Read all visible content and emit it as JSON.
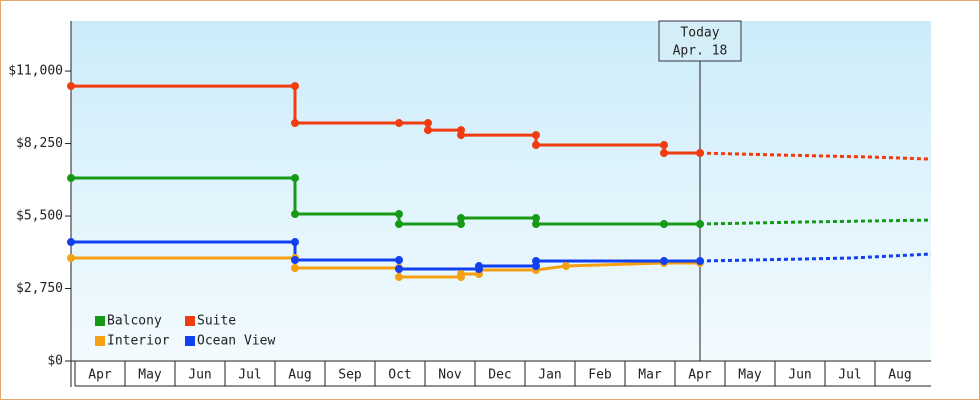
{
  "chart_data": {
    "type": "step-line",
    "categories": [
      "Apr",
      "May",
      "Jun",
      "Jul",
      "Aug",
      "Sep",
      "Oct",
      "Nov",
      "Dec",
      "Jan",
      "Feb",
      "Mar",
      "Apr",
      "May",
      "Jun",
      "Jul",
      "Aug"
    ],
    "xlim": [
      0,
      17.2
    ],
    "ylim": [
      0,
      12900
    ],
    "yticks": [
      {
        "value": 0,
        "label": "$0"
      },
      {
        "value": 2750,
        "label": "$2,750"
      },
      {
        "value": 5500,
        "label": "$5,500"
      },
      {
        "value": 8250,
        "label": "$8,250"
      },
      {
        "value": 11000,
        "label": "$11,000"
      }
    ],
    "annotation": {
      "lines": [
        "Today",
        "Apr. 18"
      ],
      "x": 12.58
    },
    "series": [
      {
        "name": "Balcony",
        "color": "#169a16",
        "x": [
          0,
          4.48,
          4.48,
          6.56,
          6.56,
          7.8,
          7.8,
          9.3,
          9.3,
          11.86,
          12.58
        ],
        "values": [
          6941,
          6941,
          5576,
          5576,
          5197,
          5197,
          5424,
          5424,
          5197,
          5197,
          5197
        ],
        "forecast_x": [
          12.58,
          14.6,
          17.2
        ],
        "forecast_values": [
          5197,
          5272,
          5348
        ]
      },
      {
        "name": "Suite",
        "color": "#f03c10",
        "x": [
          0,
          4.48,
          4.48,
          6.56,
          7.14,
          7.14,
          7.8,
          7.8,
          9.3,
          9.3,
          11.86,
          11.86,
          12.58
        ],
        "values": [
          10431,
          10431,
          9028,
          9028,
          9028,
          8762,
          8762,
          8572,
          8572,
          8193,
          8193,
          7890,
          7890
        ],
        "forecast_x": [
          12.58,
          14.2,
          16,
          17.2
        ],
        "forecast_values": [
          7890,
          7814,
          7738,
          7662
        ]
      },
      {
        "name": "Interior",
        "color": "#f5a012",
        "x": [
          0,
          4.48,
          4.48,
          6.56,
          6.56,
          7.8,
          7.8,
          8.16,
          8.16,
          9.3,
          9.9,
          11.86,
          12.58
        ],
        "values": [
          3907,
          3907,
          3528,
          3528,
          3186,
          3186,
          3300,
          3300,
          3452,
          3452,
          3603,
          3717,
          3717
        ],
        "forecast_x": [],
        "forecast_values": []
      },
      {
        "name": "Ocean View",
        "color": "#1040f0",
        "x": [
          0,
          4.48,
          4.48,
          6.56,
          6.56,
          8.16,
          8.16,
          9.3,
          9.3,
          11.86,
          12.58
        ],
        "values": [
          4514,
          4514,
          3831,
          3831,
          3490,
          3490,
          3603,
          3603,
          3793,
          3793,
          3793
        ],
        "forecast_x": [
          12.58,
          15.6,
          17.2
        ],
        "forecast_values": [
          3793,
          3907,
          4059
        ]
      }
    ]
  }
}
